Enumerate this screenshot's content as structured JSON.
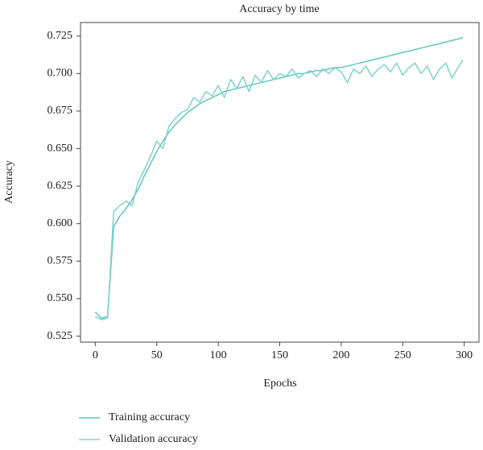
{
  "chart_data": {
    "type": "line",
    "title": "Accuracy by time",
    "x_label": "Epochs",
    "y_label": "Accuracy",
    "x": [
      0,
      5,
      10,
      15,
      20,
      25,
      30,
      35,
      40,
      45,
      50,
      55,
      60,
      65,
      70,
      75,
      80,
      85,
      90,
      95,
      100,
      105,
      110,
      115,
      120,
      125,
      130,
      135,
      140,
      145,
      150,
      155,
      160,
      165,
      170,
      175,
      180,
      185,
      190,
      195,
      200,
      205,
      210,
      215,
      220,
      225,
      230,
      235,
      240,
      245,
      250,
      255,
      260,
      265,
      270,
      275,
      280,
      285,
      290,
      295,
      299
    ],
    "series": [
      {
        "name": "Training accuracy",
        "color": "#5ec6c4",
        "values": [
          0.541,
          0.537,
          0.538,
          0.598,
          0.605,
          0.61,
          0.616,
          0.623,
          0.632,
          0.64,
          0.648,
          0.655,
          0.661,
          0.666,
          0.67,
          0.674,
          0.677,
          0.68,
          0.682,
          0.684,
          0.686,
          0.688,
          0.689,
          0.69,
          0.691,
          0.692,
          0.693,
          0.694,
          0.695,
          0.696,
          0.697,
          0.698,
          0.699,
          0.7,
          0.7,
          0.701,
          0.702,
          0.702,
          0.703,
          0.704,
          0.704,
          0.705,
          0.706,
          0.707,
          0.708,
          0.709,
          0.71,
          0.711,
          0.712,
          0.713,
          0.714,
          0.715,
          0.716,
          0.717,
          0.718,
          0.719,
          0.72,
          0.721,
          0.722,
          0.723,
          0.724
        ]
      },
      {
        "name": "Validation accuracy",
        "color": "#80d2cc",
        "values": [
          0.538,
          0.536,
          0.537,
          0.608,
          0.612,
          0.615,
          0.612,
          0.628,
          0.636,
          0.645,
          0.655,
          0.65,
          0.665,
          0.67,
          0.674,
          0.676,
          0.684,
          0.681,
          0.688,
          0.685,
          0.692,
          0.684,
          0.696,
          0.69,
          0.698,
          0.688,
          0.699,
          0.694,
          0.702,
          0.696,
          0.7,
          0.698,
          0.703,
          0.697,
          0.7,
          0.702,
          0.698,
          0.703,
          0.7,
          0.704,
          0.701,
          0.694,
          0.703,
          0.7,
          0.705,
          0.698,
          0.703,
          0.706,
          0.701,
          0.707,
          0.699,
          0.704,
          0.707,
          0.7,
          0.705,
          0.696,
          0.703,
          0.707,
          0.697,
          0.704,
          0.709
        ]
      }
    ],
    "xlim": [
      -12,
      312
    ],
    "xticks": [
      0,
      50,
      100,
      150,
      200,
      250,
      300
    ],
    "ylim": [
      0.521,
      0.734
    ],
    "yticks": [
      0.525,
      {
        "value": 0.55,
        "label": "0.550"
      },
      0.575,
      {
        "value": 0.6,
        "label": "0.600"
      },
      0.625,
      {
        "value": 0.65,
        "label": "0.650"
      },
      0.675,
      {
        "value": 0.7,
        "label": "0.700"
      },
      0.725
    ],
    "grid": false,
    "legend": "bottom"
  }
}
